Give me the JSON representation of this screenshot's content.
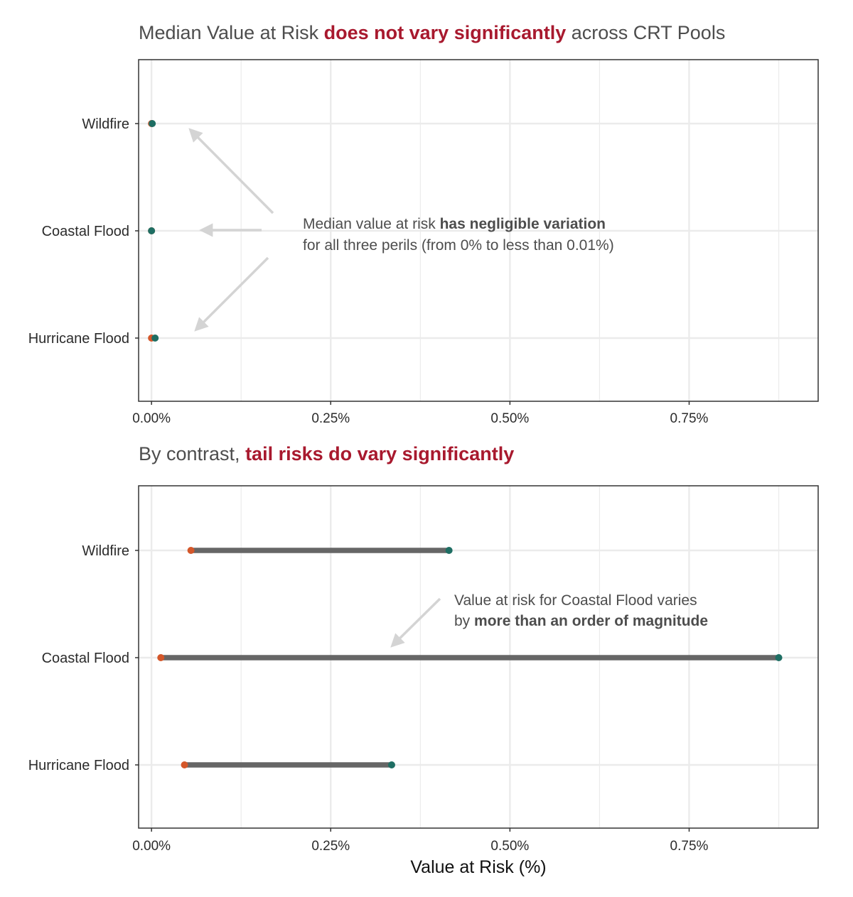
{
  "colors": {
    "title_text": "#4d4d4d",
    "title_highlight": "#a8192e",
    "min_point": "#d4572a",
    "max_point": "#1e6e63",
    "range_bar": "#666666",
    "arrow": "#d4d4d4",
    "grid": "#ebebeb",
    "panel_border": "#333333"
  },
  "chart_data": [
    {
      "type": "dumbbell",
      "title_parts": [
        {
          "text": "Median Value at Risk ",
          "highlight": false
        },
        {
          "text": "does not vary significantly",
          "highlight": true
        },
        {
          "text": " across CRT Pools",
          "highlight": false
        }
      ],
      "categories": [
        "Wildfire",
        "Coastal Flood",
        "Hurricane Flood"
      ],
      "series": [
        {
          "values_min": [
            0.0,
            0.0,
            0.0
          ],
          "values_max": [
            0.001,
            0.0,
            0.005
          ]
        }
      ],
      "xlim": [
        -0.018,
        0.93
      ],
      "x_ticks": [
        {
          "value": 0.0,
          "label": "0.00%"
        },
        {
          "value": 0.25,
          "label": "0.25%"
        },
        {
          "value": 0.5,
          "label": "0.50%"
        },
        {
          "value": 0.75,
          "label": "0.75%"
        }
      ],
      "grid": true,
      "xlabel": "",
      "annotation": {
        "lines": [
          [
            {
              "text": "Median value at risk ",
              "bold": false
            },
            {
              "text": "has negligible variation",
              "bold": true
            }
          ],
          [
            {
              "text": "for all three perils (from 0% to less than 0.01%)",
              "bold": false
            }
          ]
        ]
      }
    },
    {
      "type": "dumbbell",
      "title_parts": [
        {
          "text": "By contrast, ",
          "highlight": false
        },
        {
          "text": "tail risks do vary significantly",
          "highlight": true
        }
      ],
      "categories": [
        "Wildfire",
        "Coastal Flood",
        "Hurricane Flood"
      ],
      "series": [
        {
          "values_min": [
            0.055,
            0.013,
            0.046
          ],
          "values_max": [
            0.415,
            0.875,
            0.335
          ]
        }
      ],
      "xlim": [
        -0.018,
        0.93
      ],
      "x_ticks": [
        {
          "value": 0.0,
          "label": "0.00%"
        },
        {
          "value": 0.25,
          "label": "0.25%"
        },
        {
          "value": 0.5,
          "label": "0.50%"
        },
        {
          "value": 0.75,
          "label": "0.75%"
        }
      ],
      "grid": true,
      "xlabel": "Value at Risk (%)",
      "annotation": {
        "lines": [
          [
            {
              "text": "Value at risk for Coastal Flood varies",
              "bold": false
            }
          ],
          [
            {
              "text": "by ",
              "bold": false
            },
            {
              "text": "more than an order of magnitude",
              "bold": true
            }
          ]
        ]
      }
    }
  ]
}
